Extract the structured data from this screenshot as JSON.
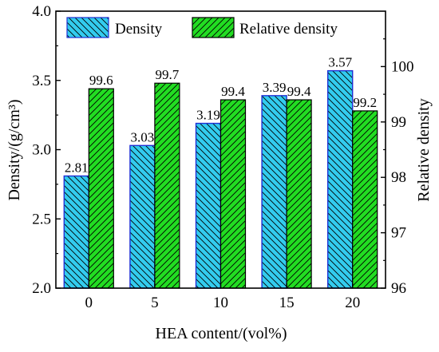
{
  "chart_data": {
    "type": "bar",
    "xlabel": "HEA content/(vol%)",
    "ylabel": "Density/(g/cm³)",
    "y2label": "Relative density",
    "categories": [
      "0",
      "5",
      "10",
      "15",
      "20"
    ],
    "ylim": [
      2.0,
      4.0
    ],
    "y2lim": [
      96,
      101
    ],
    "yticks": [
      "2.0",
      "2.5",
      "3.0",
      "3.5",
      "4.0"
    ],
    "y2ticks": [
      "96",
      "97",
      "98",
      "99",
      "100"
    ],
    "legend_position": "top",
    "series": [
      {
        "name": "Density",
        "axis": "left",
        "color": "#33ccee",
        "edge": "#1f2fd6",
        "values": [
          2.81,
          3.03,
          3.19,
          3.39,
          3.57
        ],
        "labels": [
          "2.81",
          "3.03",
          "3.19",
          "3.39",
          "3.57"
        ]
      },
      {
        "name": "Relative density",
        "axis": "right",
        "color": "#22dd22",
        "edge": "#000000",
        "values": [
          99.6,
          99.7,
          99.4,
          99.4,
          99.2
        ],
        "labels": [
          "99.6",
          "99.7",
          "99.4",
          "99.4",
          "99.2"
        ]
      }
    ]
  }
}
